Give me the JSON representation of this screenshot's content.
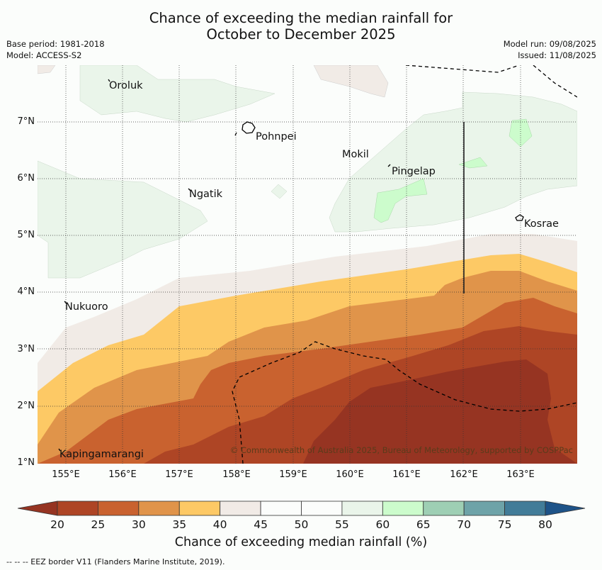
{
  "title_line1": "Chance of exceeding the median rainfall for",
  "title_line2": "October to December 2025",
  "base_period": "Base period: 1981-2018",
  "model": "Model: ACCESS-S2",
  "model_run": "Model run: 09/08/2025",
  "issued": "Issued: 11/08/2025",
  "lat_ticks": [
    "7°N",
    "6°N",
    "5°N",
    "4°N",
    "3°N",
    "2°N",
    "1°N"
  ],
  "lon_ticks": [
    "155°E",
    "156°E",
    "157°E",
    "158°E",
    "159°E",
    "160°E",
    "161°E",
    "162°E",
    "163°E"
  ],
  "places": {
    "oroluk": "Oroluk",
    "pohnpei": "Pohnpei",
    "mokil": "Mokil",
    "pingelap": "Pingelap",
    "ngatik": "Ngatik",
    "kosrae": "Kosrae",
    "nukuoro": "Nukuoro",
    "kapingamarangi": "Kapingamarangi"
  },
  "copyright": "© Commonwealth of Australia 2025, Bureau of Meteorology, supported by COSPPac",
  "colorbar": {
    "labels": [
      "20",
      "25",
      "30",
      "35",
      "40",
      "45",
      "50",
      "55",
      "60",
      "65",
      "70",
      "75",
      "80"
    ],
    "colors": [
      "#ae4525",
      "#c9622f",
      "#e0944a",
      "#fdc965",
      "#f1ebe6",
      "#fbfdfb",
      "#fbfdfb",
      "#eaf5ea",
      "#ccfccc",
      "#9ecfb4",
      "#6ea3a8",
      "#427c98"
    ],
    "under_color": "#963422",
    "over_color": "#1e5388",
    "title": "Chance of exceeding median rainfall (%)"
  },
  "footnote": "--  --  -- EEZ border V11 (Flanders Marine Institute, 2019)."
}
